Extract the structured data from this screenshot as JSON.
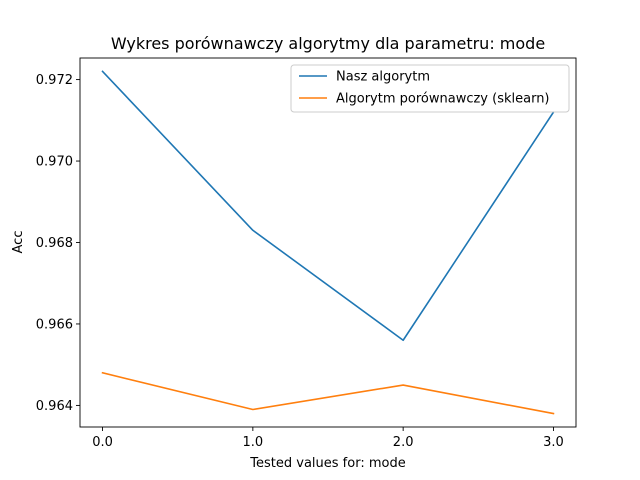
{
  "chart_data": {
    "type": "line",
    "title": "Wykres porównawczy algorytmy dla parametru: mode",
    "xlabel": "Tested values for: mode",
    "ylabel": "Acc",
    "x": [
      0.0,
      1.0,
      2.0,
      3.0
    ],
    "x_tick_labels": [
      "0.0",
      "1.0",
      "2.0",
      "3.0"
    ],
    "y_ticks": [
      0.964,
      0.966,
      0.968,
      0.97,
      0.972
    ],
    "y_tick_labels": [
      "0.964",
      "0.966",
      "0.968",
      "0.970",
      "0.972"
    ],
    "xlim": [
      -0.15,
      3.15
    ],
    "ylim": [
      0.96347,
      0.97253
    ],
    "grid": false,
    "legend_position": "top-right",
    "series": [
      {
        "name": "Nasz algorytm",
        "color": "#1f77b4",
        "values": [
          0.9722,
          0.9683,
          0.9656,
          0.9712
        ]
      },
      {
        "name": "Algorytm porównawczy (sklearn)",
        "color": "#ff7f0e",
        "values": [
          0.9648,
          0.9639,
          0.9645,
          0.9638
        ]
      }
    ]
  }
}
